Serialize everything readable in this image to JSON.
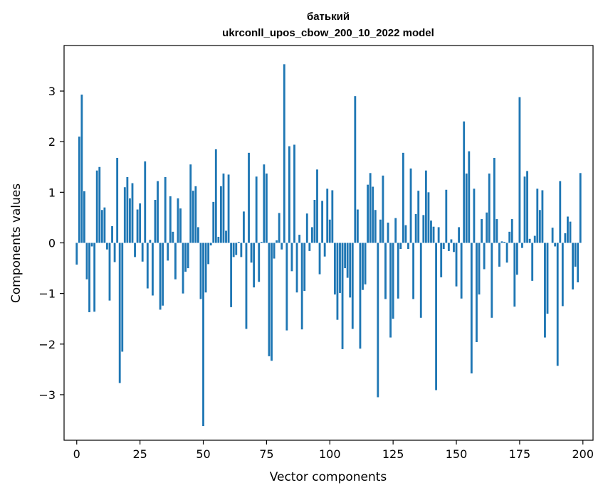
{
  "chart_data": {
    "type": "bar",
    "title": "батький",
    "subtitle": "ukrconll_upos_cbow_200_10_2022 model",
    "xlabel": "Vector components",
    "ylabel": "Components values",
    "xlim": [
      -5,
      204
    ],
    "ylim": [
      -3.9,
      3.9
    ],
    "xticks": [
      0,
      25,
      50,
      75,
      100,
      125,
      150,
      175,
      200
    ],
    "xtick_labels": [
      "0",
      "25",
      "50",
      "75",
      "100",
      "125",
      "150",
      "175",
      "200"
    ],
    "yticks": [
      -3,
      -2,
      -1,
      0,
      1,
      2,
      3
    ],
    "ytick_labels": [
      "−3",
      "−2",
      "−1",
      "0",
      "1",
      "2",
      "3"
    ],
    "grid": false,
    "bar_color": "#1f77b4",
    "x": [
      0,
      1,
      2,
      3,
      4,
      5,
      6,
      7,
      8,
      9,
      10,
      11,
      12,
      13,
      14,
      15,
      16,
      17,
      18,
      19,
      20,
      21,
      22,
      23,
      24,
      25,
      26,
      27,
      28,
      29,
      30,
      31,
      32,
      33,
      34,
      35,
      36,
      37,
      38,
      39,
      40,
      41,
      42,
      43,
      44,
      45,
      46,
      47,
      48,
      49,
      50,
      51,
      52,
      53,
      54,
      55,
      56,
      57,
      58,
      59,
      60,
      61,
      62,
      63,
      64,
      65,
      66,
      67,
      68,
      69,
      70,
      71,
      72,
      73,
      74,
      75,
      76,
      77,
      78,
      79,
      80,
      81,
      82,
      83,
      84,
      85,
      86,
      87,
      88,
      89,
      90,
      91,
      92,
      93,
      94,
      95,
      96,
      97,
      98,
      99,
      100,
      101,
      102,
      103,
      104,
      105,
      106,
      107,
      108,
      109,
      110,
      111,
      112,
      113,
      114,
      115,
      116,
      117,
      118,
      119,
      120,
      121,
      122,
      123,
      124,
      125,
      126,
      127,
      128,
      129,
      130,
      131,
      132,
      133,
      134,
      135,
      136,
      137,
      138,
      139,
      140,
      141,
      142,
      143,
      144,
      145,
      146,
      147,
      148,
      149,
      150,
      151,
      152,
      153,
      154,
      155,
      156,
      157,
      158,
      159,
      160,
      161,
      162,
      163,
      164,
      165,
      166,
      167,
      168,
      169,
      170,
      171,
      172,
      173,
      174,
      175,
      176,
      177,
      178,
      179,
      180,
      181,
      182,
      183,
      184,
      185,
      186,
      187,
      188,
      189,
      190,
      191,
      192,
      193,
      194,
      195,
      196,
      197,
      198,
      199
    ],
    "values": [
      -0.43,
      2.1,
      2.93,
      1.02,
      -0.72,
      -1.37,
      -0.07,
      -1.36,
      1.43,
      1.5,
      0.65,
      0.7,
      -0.13,
      -1.14,
      0.33,
      -0.38,
      1.68,
      -2.77,
      -2.15,
      1.1,
      1.3,
      0.88,
      1.18,
      -0.28,
      0.66,
      0.78,
      -0.37,
      1.61,
      -0.9,
      0.06,
      -1.04,
      0.85,
      1.22,
      -1.32,
      -1.24,
      1.3,
      -0.35,
      0.92,
      0.22,
      -0.72,
      0.88,
      0.68,
      -1.0,
      -0.57,
      -0.5,
      1.55,
      1.03,
      1.12,
      0.31,
      -1.11,
      -3.62,
      -0.98,
      -0.42,
      -0.05,
      0.81,
      1.85,
      0.12,
      1.12,
      1.37,
      0.24,
      1.35,
      -1.27,
      -0.28,
      -0.24,
      0.02,
      -0.28,
      0.62,
      -1.7,
      1.78,
      -0.39,
      -0.88,
      1.31,
      -0.77,
      0.02,
      1.55,
      1.37,
      -2.24,
      -2.33,
      -0.31,
      0.05,
      0.59,
      -0.13,
      3.53,
      -1.73,
      1.91,
      -0.56,
      1.94,
      -0.98,
      0.16,
      -1.71,
      -0.95,
      0.58,
      -0.16,
      0.31,
      0.85,
      1.45,
      -0.62,
      0.83,
      -0.27,
      1.07,
      0.46,
      1.04,
      -1.02,
      -1.52,
      -0.99,
      -2.1,
      -0.5,
      -0.69,
      -1.08,
      -1.7,
      2.9,
      0.66,
      -2.09,
      -0.93,
      -0.82,
      1.15,
      1.38,
      1.11,
      0.65,
      -3.05,
      0.46,
      1.33,
      -1.11,
      0.4,
      -1.87,
      -1.5,
      0.49,
      -1.1,
      -0.12,
      1.78,
      0.35,
      -0.12,
      1.47,
      -1.11,
      0.57,
      1.03,
      -1.48,
      0.55,
      1.43,
      1.0,
      0.44,
      0.32,
      -2.91,
      0.31,
      -0.68,
      -0.12,
      1.05,
      -0.16,
      0.07,
      -0.18,
      -0.86,
      0.31,
      -1.1,
      2.4,
      1.37,
      1.81,
      -2.58,
      1.07,
      -1.96,
      -1.02,
      0.47,
      -0.52,
      0.6,
      1.37,
      -1.48,
      1.68,
      0.47,
      -0.47,
      0.03,
      0.02,
      -0.39,
      0.22,
      0.47,
      -1.26,
      -0.63,
      2.88,
      -0.1,
      1.31,
      1.42,
      0.08,
      -0.75,
      0.14,
      1.07,
      0.65,
      1.04,
      -1.87,
      -1.4,
      0.0,
      0.3,
      -0.07,
      -2.43,
      1.22,
      -1.25,
      0.19,
      0.52,
      0.42,
      -0.92,
      -0.47,
      -0.78,
      1.38
    ]
  }
}
